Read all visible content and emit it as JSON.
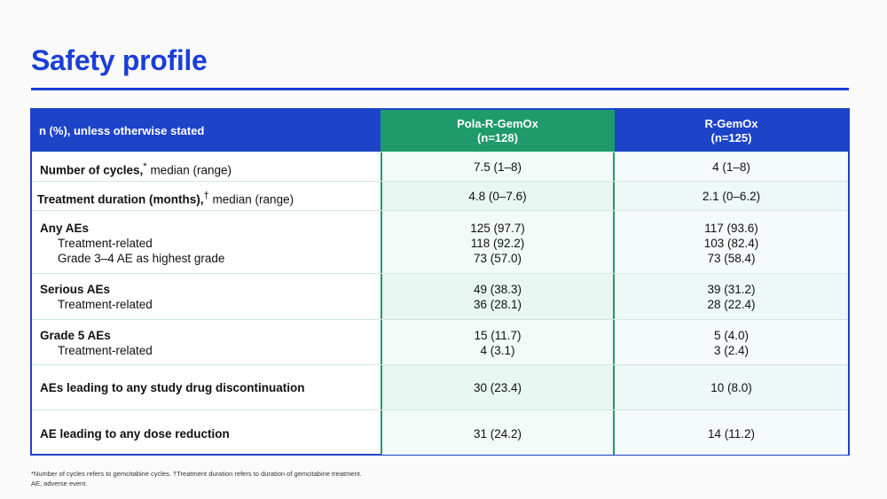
{
  "title": "Safety profile",
  "table": {
    "header": {
      "label": "n (%), unless otherwise stated",
      "col1_name": "Pola-R-GemOx",
      "col1_n": "(n=128)",
      "col2_name": "R-GemOx",
      "col2_n": "(n=125)"
    },
    "rows": [
      {
        "label_bold": "Number of cycles,",
        "label_sup": "*",
        "label_rest": " median (range)",
        "v1": "7.5 (1–8)",
        "v2": "4 (1–8)"
      },
      {
        "label_bold": "Treatment duration (months),",
        "label_sup": "†",
        "label_rest": " median (range)",
        "v1": "4.8 (0–7.6)",
        "v2": "2.1 (0–6.2)"
      },
      {
        "label_bold": "Any AEs",
        "sub1": "Treatment-related",
        "sub2": "Grade 3–4 AE as highest grade",
        "v1": "125 (97.7)",
        "v1_sub1": "118 (92.2)",
        "v1_sub2": "73 (57.0)",
        "v2": "117 (93.6)",
        "v2_sub1": "103 (82.4)",
        "v2_sub2": "73 (58.4)"
      },
      {
        "label_bold": "Serious AEs",
        "sub1": "Treatment-related",
        "v1": "49 (38.3)",
        "v1_sub1": "36 (28.1)",
        "v2": "39 (31.2)",
        "v2_sub1": "28 (22.4)"
      },
      {
        "label_bold": "Grade 5 AEs",
        "sub1": "Treatment-related",
        "v1": "15 (11.7)",
        "v1_sub1": "4 (3.1)",
        "v2": "5 (4.0)",
        "v2_sub1": "3 (2.4)"
      },
      {
        "label_bold": "AEs leading to any study drug discontinuation",
        "v1": "30 (23.4)",
        "v2": "10 (8.0)"
      },
      {
        "label_bold": "AE leading to any dose reduction",
        "v1": "31 (24.2)",
        "v2": "14 (11.2)"
      }
    ]
  },
  "footnote": {
    "line1": "*Number of cycles refers to gemcitabine cycles. †Treatment duration refers to duration of gemcitabine treatment.",
    "line2": "AE, adverse event."
  },
  "colors": {
    "title_blue": "#1a3fd9",
    "header_blue": "#1d43c9",
    "header_green": "#1f9b6b"
  }
}
